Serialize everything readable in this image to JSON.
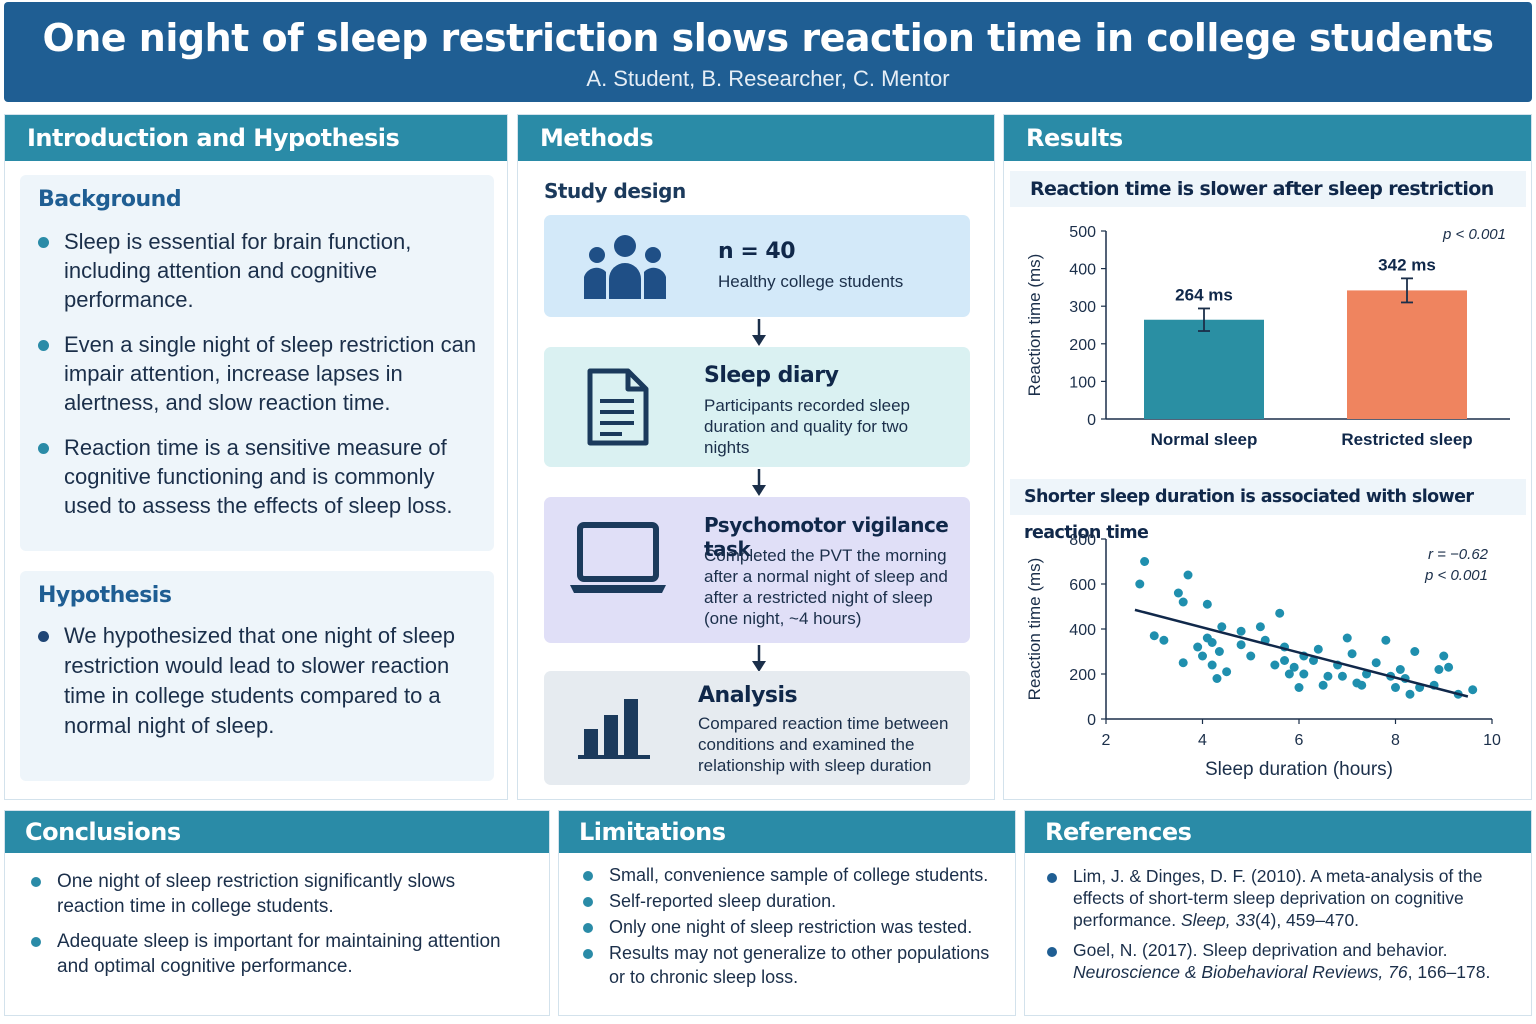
{
  "header": {
    "title": "One night of sleep restriction slows reaction time in college students",
    "authors": "A. Student, B. Researcher, C. Mentor"
  },
  "intro": {
    "heading": "Introduction and Hypothesis",
    "background": {
      "title": "Background",
      "bullets": [
        "Sleep is essential for brain function, including attention and cognitive performance.",
        "Even a single night of sleep restriction can impair attention, increase lapses in alertness, and slow reaction time.",
        "Reaction time is a sensitive measure of cognitive functioning and is commonly used to assess the effects of sleep loss."
      ]
    },
    "hypothesis": {
      "title": "Hypothesis",
      "text": "We hypothesized that one night of sleep restriction would lead to slower reaction time in college students compared to a normal night of sleep."
    }
  },
  "methods": {
    "heading": "Methods",
    "subtitle": "Study design",
    "cards": [
      {
        "title": "n = 40",
        "desc": "Healthy college students",
        "icon": "people-icon",
        "color": "#d3e9f9"
      },
      {
        "title": "Sleep diary",
        "desc": "Participants recorded sleep duration and quality for two nights",
        "icon": "document-icon",
        "color": "#daf1f2"
      },
      {
        "title": "Psychomotor vigilance task",
        "desc": "Completed the PVT the morning after a normal night of sleep and after a restricted night of sleep (one night, ~4 hours)",
        "icon": "laptop-icon",
        "color": "#e0dff7"
      },
      {
        "title": "Analysis",
        "desc": "Compared reaction time between conditions and examined the relationship with sleep duration",
        "icon": "bar-chart-icon",
        "color": "#e6ebf0"
      }
    ]
  },
  "results": {
    "heading": "Results",
    "chart1_title": "Reaction time is slower after sleep restriction",
    "chart2_title": "Shorter sleep duration is associated with slower reaction time"
  },
  "chart_data": [
    {
      "type": "bar",
      "title": "Reaction time is slower after sleep restriction",
      "ylabel": "Reaction time (ms)",
      "ylim": [
        0,
        500
      ],
      "yticks": [
        0,
        100,
        200,
        300,
        400,
        500
      ],
      "categories": [
        "Normal sleep",
        "Restricted sleep"
      ],
      "values": [
        264,
        342
      ],
      "errors": [
        30,
        32
      ],
      "data_labels": [
        "264 ms",
        "342 ms"
      ],
      "colors": [
        "#2a8fa3",
        "#ef845f"
      ],
      "annotation": "p < 0.001",
      "grid": false
    },
    {
      "type": "scatter",
      "title": "Shorter sleep duration is associated with slower reaction time",
      "xlabel": "Sleep duration (hours)",
      "ylabel": "Reaction time (ms)",
      "xlim": [
        2,
        10
      ],
      "ylim": [
        0,
        800
      ],
      "xticks": [
        2,
        4,
        6,
        8,
        10
      ],
      "yticks": [
        0,
        200,
        400,
        600,
        800
      ],
      "annotation_r": "r = −0.62",
      "annotation_p": "p < 0.001",
      "trendline": {
        "x": [
          2.6,
          9.5
        ],
        "y": [
          485,
          100
        ]
      },
      "point_color": "#1f8fae",
      "points": [
        [
          2.7,
          600
        ],
        [
          2.8,
          700
        ],
        [
          3.0,
          370
        ],
        [
          3.2,
          350
        ],
        [
          3.5,
          560
        ],
        [
          3.6,
          520
        ],
        [
          3.7,
          640
        ],
        [
          3.6,
          250
        ],
        [
          3.9,
          320
        ],
        [
          4.0,
          280
        ],
        [
          4.1,
          510
        ],
        [
          4.1,
          360
        ],
        [
          4.2,
          340
        ],
        [
          4.2,
          240
        ],
        [
          4.3,
          180
        ],
        [
          4.35,
          300
        ],
        [
          4.5,
          210
        ],
        [
          4.4,
          410
        ],
        [
          4.8,
          390
        ],
        [
          4.8,
          330
        ],
        [
          5.0,
          280
        ],
        [
          5.2,
          410
        ],
        [
          5.3,
          350
        ],
        [
          5.6,
          470
        ],
        [
          5.7,
          320
        ],
        [
          5.5,
          240
        ],
        [
          5.7,
          260
        ],
        [
          5.8,
          200
        ],
        [
          5.9,
          230
        ],
        [
          6.0,
          140
        ],
        [
          6.1,
          200
        ],
        [
          6.1,
          280
        ],
        [
          6.3,
          260
        ],
        [
          6.4,
          310
        ],
        [
          6.5,
          150
        ],
        [
          6.6,
          190
        ],
        [
          6.8,
          240
        ],
        [
          6.9,
          190
        ],
        [
          7.0,
          360
        ],
        [
          7.1,
          290
        ],
        [
          7.2,
          160
        ],
        [
          7.3,
          150
        ],
        [
          7.4,
          200
        ],
        [
          7.6,
          250
        ],
        [
          7.8,
          350
        ],
        [
          7.9,
          190
        ],
        [
          8.0,
          140
        ],
        [
          8.1,
          220
        ],
        [
          8.2,
          180
        ],
        [
          8.3,
          110
        ],
        [
          8.4,
          300
        ],
        [
          8.5,
          140
        ],
        [
          8.8,
          150
        ],
        [
          8.9,
          220
        ],
        [
          9.0,
          280
        ],
        [
          9.1,
          230
        ],
        [
          9.3,
          110
        ],
        [
          9.6,
          130
        ]
      ]
    }
  ],
  "conclusions": {
    "heading": "Conclusions",
    "bullets": [
      "One night of sleep restriction significantly slows reaction time in college students.",
      "Adequate sleep is important for maintaining attention and optimal cognitive performance."
    ]
  },
  "limitations": {
    "heading": "Limitations",
    "bullets": [
      "Small, convenience sample of college students.",
      "Self-reported sleep duration.",
      "Only one night of sleep restriction was tested.",
      "Results may not generalize to other populations or to chronic sleep loss."
    ]
  },
  "references": {
    "heading": "References",
    "items": [
      {
        "text": "Lim, J. & Dinges, D. F. (2010). A meta-analysis of the effects of short-term sleep deprivation on cognitive performance.",
        "journal": "Sleep, 33",
        "rest": "(4), 459–470."
      },
      {
        "text": "Goel, N. (2017). Sleep deprivation and behavior.",
        "journal": "Neuroscience & Biobehavioral Reviews, 76",
        "rest": ", 166–178."
      }
    ]
  }
}
